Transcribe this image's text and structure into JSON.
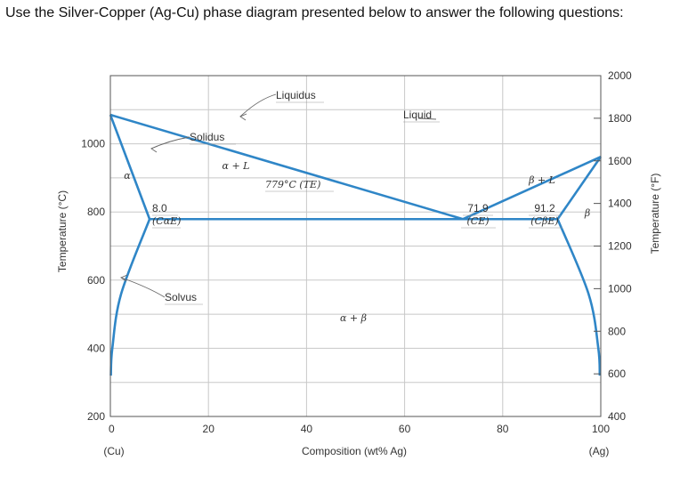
{
  "question": "Use the Silver-Copper (Ag-Cu) phase diagram presented below to answer the following questions:",
  "chart_data": {
    "type": "line",
    "xlabel": "Composition (wt% Ag)",
    "ylabel_left": "Temperature (°C)",
    "ylabel_right": "Temperature (°F)",
    "xlim": [
      0,
      100
    ],
    "ylim_c": [
      200,
      1200
    ],
    "ylim_f": [
      400,
      2000
    ],
    "x_ticks": [
      "0",
      "20",
      "40",
      "60",
      "80",
      "100"
    ],
    "x_tick_values": [
      0,
      20,
      40,
      60,
      80,
      100
    ],
    "x_end_labels": [
      "(Cu)",
      "(Ag)"
    ],
    "y_ticks_c": [
      "200",
      "400",
      "600",
      "800",
      "1000"
    ],
    "y_tick_values_c": [
      200,
      400,
      600,
      800,
      1000
    ],
    "y_ticks_f": [
      "400",
      "600",
      "800",
      "1000",
      "1200",
      "1400",
      "1600",
      "1800",
      "2000"
    ],
    "y_tick_values_f": [
      400,
      600,
      800,
      1000,
      1200,
      1400,
      1600,
      1800,
      2000
    ],
    "series": [
      {
        "name": "Liquidus",
        "x": [
          0,
          71.9,
          100
        ],
        "y": [
          1085,
          779,
          962
        ]
      },
      {
        "name": "Solidus",
        "x": [
          0,
          8.0
        ],
        "y": [
          1085,
          779
        ]
      },
      {
        "name": "Solvus",
        "x": [
          8.0,
          2.2,
          0.4,
          0.1
        ],
        "y": [
          779,
          560,
          400,
          320
        ]
      },
      {
        "name": "",
        "x": [
          100,
          91.2
        ],
        "y": [
          962,
          779
        ]
      },
      {
        "name": "",
        "x": [
          91.2,
          97.5,
          99.5,
          99.8
        ],
        "y": [
          779,
          560,
          400,
          320
        ]
      },
      {
        "name": "",
        "x": [
          8.0,
          91.2
        ],
        "y": [
          779,
          779
        ]
      }
    ],
    "annotations": {
      "liquidus": "Liquidus",
      "liquid": "Liquid",
      "solidus": "Solidus",
      "solvus": "Solvus",
      "alpha": "α",
      "alpha_l": "α + L",
      "beta_l": "β + L",
      "beta": "β",
      "alpha_beta": "α + β",
      "te": "779°C (TE)",
      "cae_val": "8.0",
      "cae_sym": "(CαE)",
      "ce_val": "71.9",
      "ce_sym": "(CE)",
      "cbe_val": "91.2",
      "cbe_sym": "(CβE)"
    },
    "grid": true
  }
}
